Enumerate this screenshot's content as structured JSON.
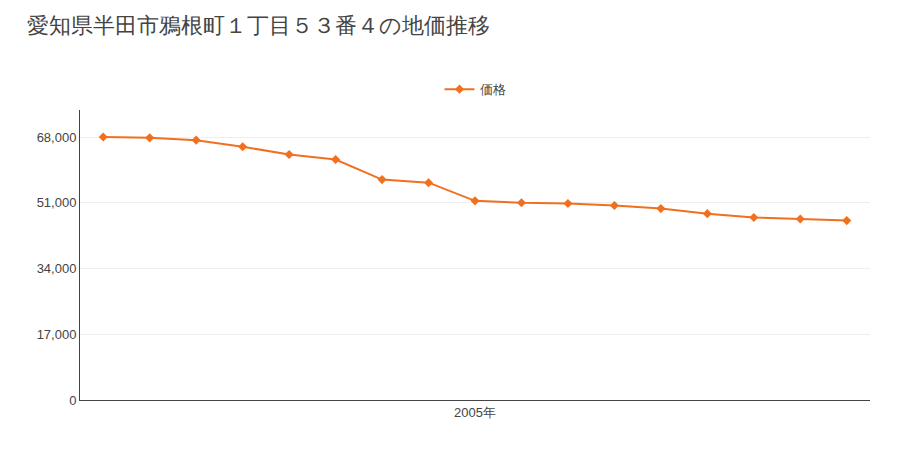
{
  "chart_data": {
    "type": "line",
    "title": "愛知県半田市鴉根町１丁目５３番４の地価推移",
    "x": [
      1997,
      1998,
      1999,
      2000,
      2001,
      2002,
      2003,
      2004,
      2005,
      2006,
      2007,
      2008,
      2009,
      2010,
      2011,
      2012,
      2013
    ],
    "series": [
      {
        "name": "価格",
        "color": "#f07020",
        "values": [
          68000,
          67800,
          67200,
          65500,
          63500,
          62200,
          57000,
          56200,
          51500,
          51000,
          50800,
          50300,
          49500,
          48200,
          47200,
          46800,
          46400
        ]
      }
    ],
    "marker": "diamond",
    "xlim": [
      1996.5,
      2013.5
    ],
    "xticks": [
      {
        "value": 2005,
        "label": "2005年"
      }
    ],
    "ylim": [
      0,
      75000
    ],
    "yticks": [
      0,
      {
        "value": 17000,
        "label": "17,000"
      },
      {
        "value": 34000,
        "label": "34,000"
      },
      {
        "value": 51000,
        "label": "51,000"
      },
      {
        "value": 68000,
        "label": "68,000"
      }
    ],
    "grid": "y",
    "legend": "top"
  }
}
